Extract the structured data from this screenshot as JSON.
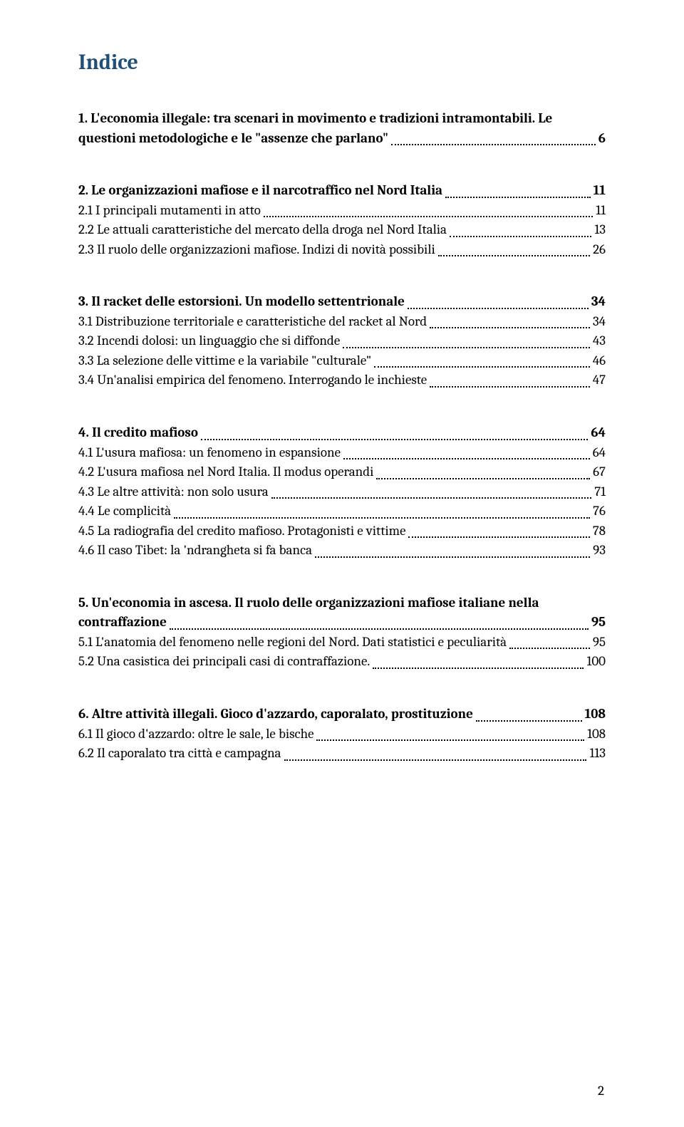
{
  "title": "Indice",
  "page_number": "2",
  "colors": {
    "title": "#1f4e79",
    "text": "#000000",
    "background": "#ffffff"
  },
  "typography": {
    "title_fontsize_pt": 22,
    "body_fontsize_pt": 14,
    "font_family": "Cambria, Georgia, serif"
  },
  "sections": [
    {
      "heading_line1": "1. L'economia illegale: tra scenari in movimento e tradizioni intramontabili. Le",
      "heading_line2": "questioni metodologiche e le \"assenze che parlano\"",
      "heading_page": "6",
      "items": []
    },
    {
      "heading_line1": "2. Le organizzazioni mafiose e il narcotraffico nel Nord Italia",
      "heading_page": "11",
      "items": [
        {
          "label": "2.1 I principali mutamenti in atto",
          "page": "11"
        },
        {
          "label": "2.2 Le attuali caratteristiche del mercato della droga nel Nord Italia",
          "page": "13"
        },
        {
          "label": "2.3 Il ruolo delle organizzazioni mafiose. Indizi di novità possibili",
          "page": "26"
        }
      ]
    },
    {
      "heading_line1": "3. Il racket delle estorsioni. Un modello settentrionale",
      "heading_page": "34",
      "items": [
        {
          "label": "3.1 Distribuzione territoriale e caratteristiche del racket al Nord",
          "page": "34"
        },
        {
          "label": "3.2 Incendi dolosi: un linguaggio che si diffonde",
          "page": "43"
        },
        {
          "label": "3.3 La selezione delle vittime e la variabile \"culturale\"",
          "page": "46"
        },
        {
          "label": "3.4 Un'analisi empirica del fenomeno. Interrogando le inchieste",
          "page": "47"
        }
      ]
    },
    {
      "heading_line1": "4. Il credito mafioso",
      "heading_page": "64",
      "items": [
        {
          "label": "4.1 L'usura mafiosa: un fenomeno in espansione",
          "page": "64"
        },
        {
          "label": "4.2 L'usura mafiosa nel Nord Italia. Il modus operandi",
          "page": "67"
        },
        {
          "label": "4.3 Le altre attività: non solo usura",
          "page": "71"
        },
        {
          "label": "4.4 Le complicità",
          "page": "76"
        },
        {
          "label": "4.5 La radiografia del credito mafioso. Protagonisti e vittime",
          "page": "78"
        },
        {
          "label": "4.6 Il caso Tibet: la 'ndrangheta si fa banca",
          "page": "93"
        }
      ]
    },
    {
      "heading_line1": "5. Un'economia in ascesa. Il ruolo delle organizzazioni mafiose italiane nella",
      "heading_line2": "contraffazione",
      "heading_page": "95",
      "items": [
        {
          "label": "5.1 L'anatomia del fenomeno nelle regioni del Nord. Dati statistici e peculiarità",
          "page": "95"
        },
        {
          "label": "5.2 Una casistica dei principali casi di contraffazione.",
          "page": "100"
        }
      ]
    },
    {
      "heading_line1": "6. Altre attività illegali. Gioco d'azzardo, caporalato, prostituzione",
      "heading_page": "108",
      "items": [
        {
          "label": "6.1 Il gioco d'azzardo: oltre le sale, le bische",
          "page": "108"
        },
        {
          "label": "6.2 Il caporalato tra città e campagna",
          "page": "113"
        }
      ]
    }
  ]
}
